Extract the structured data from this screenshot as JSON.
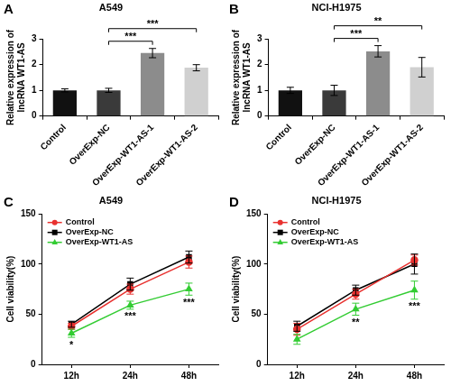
{
  "chart_data": [
    {
      "panel_label": "A",
      "type": "bar",
      "title": "A549",
      "y_label": [
        "Relative expression of",
        "lncRNA WT1-AS"
      ],
      "categories": [
        "Control",
        "OverExp-NC",
        "OverExp-WT1-AS-1",
        "OverExp-WT1-AS-2"
      ],
      "values": [
        1.0,
        1.0,
        2.45,
        1.88
      ],
      "errors": [
        0.06,
        0.08,
        0.18,
        0.12
      ],
      "colors": [
        "#111111",
        "#3a3a3a",
        "#8c8c8c",
        "#d0d0d0"
      ],
      "ylim": [
        0,
        3
      ],
      "yticks": [
        0,
        1,
        2,
        3
      ],
      "grid": false,
      "annotations": [
        {
          "from": "OverExp-NC",
          "to": "OverExp-WT1-AS-1",
          "text": "***"
        },
        {
          "from": "OverExp-NC",
          "to": "OverExp-WT1-AS-2",
          "text": "***"
        }
      ]
    },
    {
      "panel_label": "B",
      "type": "bar",
      "title": "NCI-H1975",
      "y_label": [
        "Relative expression of",
        "lncRNA WT1-AS"
      ],
      "categories": [
        "Control",
        "OverExp-NC",
        "OverExp-WT1-AS-1",
        "OverExp-WT1-AS-2"
      ],
      "values": [
        1.0,
        1.0,
        2.52,
        1.9
      ],
      "errors": [
        0.12,
        0.2,
        0.22,
        0.38
      ],
      "colors": [
        "#111111",
        "#3a3a3a",
        "#8c8c8c",
        "#d0d0d0"
      ],
      "ylim": [
        0,
        3
      ],
      "yticks": [
        0,
        1,
        2,
        3
      ],
      "grid": false,
      "annotations": [
        {
          "from": "OverExp-NC",
          "to": "OverExp-WT1-AS-1",
          "text": "***"
        },
        {
          "from": "OverExp-NC",
          "to": "OverExp-WT1-AS-2",
          "text": "**"
        }
      ]
    },
    {
      "panel_label": "C",
      "type": "line",
      "title": "A549",
      "y_label": "Cell viability(%)",
      "categories": [
        "12h",
        "24h",
        "48h"
      ],
      "series": [
        {
          "name": "Control",
          "color": "#e8312f",
          "marker": "circle",
          "values": [
            38,
            75,
            102
          ],
          "errors": [
            3,
            5,
            6
          ]
        },
        {
          "name": "OverExp-NC",
          "color": "#000000",
          "marker": "square",
          "values": [
            40,
            80,
            107
          ],
          "errors": [
            3,
            6,
            6
          ]
        },
        {
          "name": "OverExp-WT1-AS",
          "color": "#33cc33",
          "marker": "triangle",
          "values": [
            31,
            59,
            75
          ],
          "errors": [
            4,
            4,
            6
          ]
        }
      ],
      "ylim": [
        0,
        150
      ],
      "yticks": [
        0,
        50,
        100,
        150
      ],
      "grid": false,
      "legend": "top-left",
      "annotations": [
        {
          "series": "OverExp-WT1-AS",
          "category": "12h",
          "text": "*"
        },
        {
          "series": "OverExp-WT1-AS",
          "category": "24h",
          "text": "***"
        },
        {
          "series": "OverExp-WT1-AS",
          "category": "48h",
          "text": "***"
        }
      ]
    },
    {
      "panel_label": "D",
      "type": "line",
      "title": "NCI-H1975",
      "y_label": "Cell viability(%)",
      "categories": [
        "12h",
        "24h",
        "48h"
      ],
      "series": [
        {
          "name": "Control",
          "color": "#e8312f",
          "marker": "circle",
          "values": [
            35,
            70,
            104
          ],
          "errors": [
            6,
            5,
            5
          ]
        },
        {
          "name": "OverExp-NC",
          "color": "#000000",
          "marker": "square",
          "values": [
            38,
            74,
            100
          ],
          "errors": [
            5,
            5,
            10
          ]
        },
        {
          "name": "OverExp-WT1-AS",
          "color": "#33cc33",
          "marker": "triangle",
          "values": [
            25,
            55,
            74
          ],
          "errors": [
            5,
            6,
            9
          ]
        }
      ],
      "ylim": [
        0,
        150
      ],
      "yticks": [
        0,
        50,
        100,
        150
      ],
      "grid": false,
      "legend": "top-left",
      "annotations": [
        {
          "series": "OverExp-WT1-AS",
          "category": "24h",
          "text": "**"
        },
        {
          "series": "OverExp-WT1-AS",
          "category": "48h",
          "text": "***"
        }
      ]
    }
  ]
}
